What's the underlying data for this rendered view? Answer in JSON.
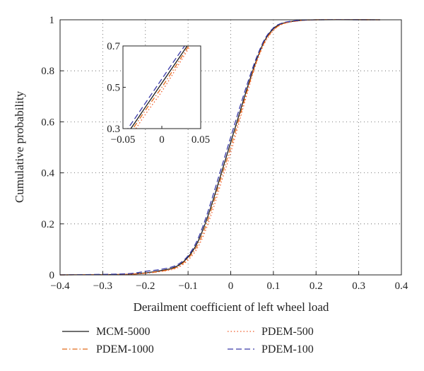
{
  "chart_data": {
    "type": "line",
    "xlabel": "Derailment coefficient of left wheel load",
    "ylabel": "Cumulative probability",
    "xlim": [
      -0.4,
      0.4
    ],
    "ylim": [
      0,
      1
    ],
    "xticks": [
      -0.4,
      -0.3,
      -0.2,
      -0.1,
      0,
      0.1,
      0.2,
      0.3,
      0.4
    ],
    "xtick_labels": [
      "−0.4",
      "−0.3",
      "−0.2",
      "−0.1",
      "0",
      "0.1",
      "0.2",
      "0.3",
      "0.4"
    ],
    "yticks": [
      0,
      0.2,
      0.4,
      0.6,
      0.8,
      1
    ],
    "ytick_labels": [
      "0",
      "0.2",
      "0.4",
      "0.6",
      "0.8",
      "1"
    ],
    "grid": true,
    "legend_position": "bottom",
    "series": [
      {
        "name": "MCM-5000",
        "color": "#1a1a1a",
        "dash": "solid",
        "x": [
          -0.4,
          -0.25,
          -0.2,
          -0.17,
          -0.14,
          -0.12,
          -0.1,
          -0.08,
          -0.06,
          -0.04,
          -0.02,
          0,
          0.02,
          0.04,
          0.06,
          0.08,
          0.1,
          0.12,
          0.15,
          0.2,
          0.35
        ],
        "y": [
          0,
          0.002,
          0.008,
          0.015,
          0.025,
          0.04,
          0.07,
          0.12,
          0.2,
          0.3,
          0.41,
          0.52,
          0.63,
          0.74,
          0.84,
          0.92,
          0.965,
          0.985,
          0.995,
          1,
          1
        ]
      },
      {
        "name": "PDEM-1000",
        "color": "#e06a1a",
        "dash": "dashdot",
        "x": [
          -0.4,
          -0.25,
          -0.2,
          -0.17,
          -0.14,
          -0.12,
          -0.1,
          -0.08,
          -0.06,
          -0.04,
          -0.02,
          0,
          0.02,
          0.04,
          0.06,
          0.08,
          0.1,
          0.12,
          0.15,
          0.2,
          0.35
        ],
        "y": [
          0,
          0.002,
          0.007,
          0.013,
          0.022,
          0.036,
          0.065,
          0.11,
          0.185,
          0.285,
          0.395,
          0.5,
          0.615,
          0.73,
          0.835,
          0.915,
          0.96,
          0.983,
          0.994,
          1,
          1
        ]
      },
      {
        "name": "PDEM-500",
        "color": "#f05a28",
        "dash": "dotted",
        "x": [
          -0.4,
          -0.25,
          -0.2,
          -0.17,
          -0.14,
          -0.12,
          -0.1,
          -0.08,
          -0.06,
          -0.04,
          -0.02,
          0,
          0.02,
          0.04,
          0.06,
          0.08,
          0.1,
          0.12,
          0.15,
          0.2,
          0.35
        ],
        "y": [
          0,
          0.002,
          0.006,
          0.012,
          0.02,
          0.032,
          0.058,
          0.1,
          0.17,
          0.265,
          0.375,
          0.48,
          0.6,
          0.72,
          0.83,
          0.91,
          0.958,
          0.982,
          0.994,
          1,
          1
        ]
      },
      {
        "name": "PDEM-100",
        "color": "#3a3aa8",
        "dash": "dashed",
        "x": [
          -0.4,
          -0.25,
          -0.2,
          -0.17,
          -0.14,
          -0.12,
          -0.1,
          -0.08,
          -0.06,
          -0.04,
          -0.02,
          0,
          0.02,
          0.04,
          0.06,
          0.08,
          0.1,
          0.12,
          0.15,
          0.2,
          0.35
        ],
        "y": [
          0,
          0.004,
          0.014,
          0.02,
          0.03,
          0.045,
          0.075,
          0.13,
          0.215,
          0.32,
          0.43,
          0.54,
          0.65,
          0.755,
          0.85,
          0.925,
          0.968,
          0.987,
          0.996,
          1,
          1
        ]
      }
    ],
    "inset": {
      "xlim": [
        -0.05,
        0.05
      ],
      "ylim": [
        0.3,
        0.7
      ],
      "xticks": [
        -0.05,
        0,
        0.05
      ],
      "xtick_labels": [
        "−0.05",
        "0",
        "0.05"
      ],
      "yticks": [
        0.3,
        0.5,
        0.7
      ],
      "ytick_labels": [
        "0.3",
        "0.5",
        "0.7"
      ],
      "grid": false
    }
  }
}
